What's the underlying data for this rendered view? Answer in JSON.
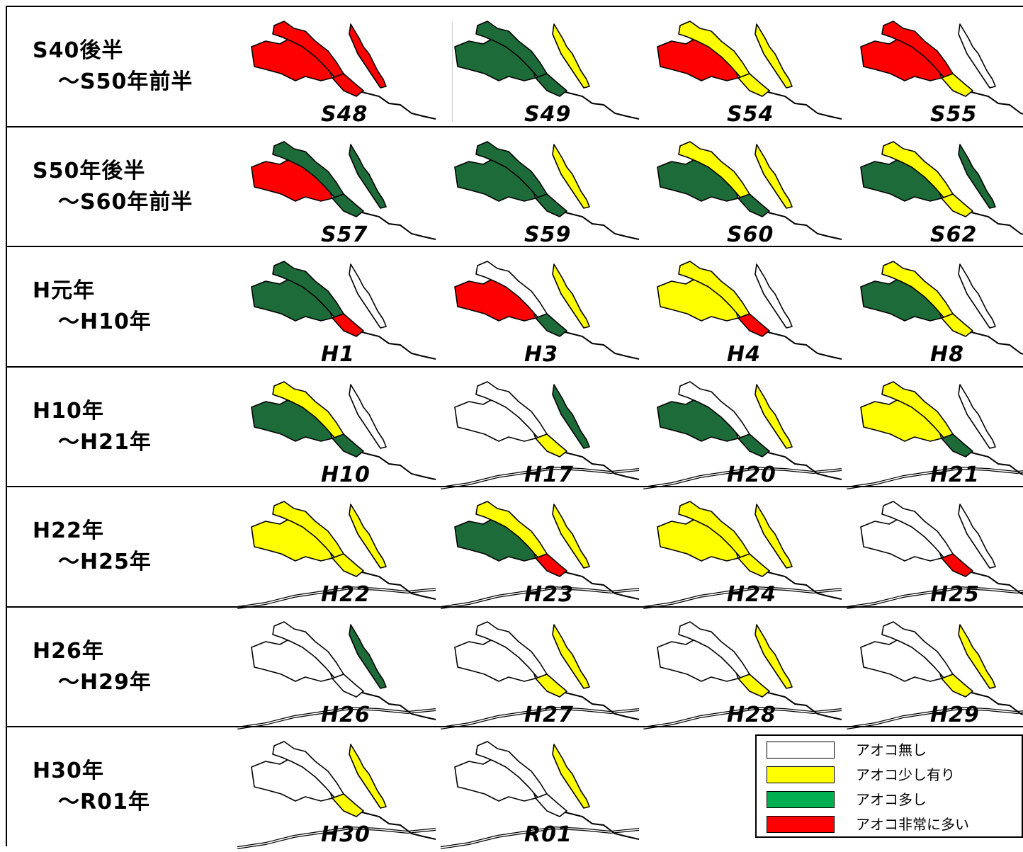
{
  "colors": {
    "none": "#ffffff",
    "few": "#ffff00",
    "many": "#1e6b3a",
    "many_legend": "#00b050",
    "very_many": "#ff0000"
  },
  "rows": [
    {
      "label_1": "S40後半",
      "label_2": "～S50年前半",
      "maps": [
        {
          "year": "S48",
          "style": "old",
          "fill": [
            "very_many",
            "very_many",
            "very_many",
            "very_many"
          ]
        },
        {
          "year": "S49",
          "style": "old",
          "fill": [
            "many",
            "many",
            "many",
            "few"
          ]
        },
        {
          "year": "S54",
          "style": "old",
          "fill": [
            "very_many",
            "few",
            "few",
            "few"
          ]
        },
        {
          "year": "S55",
          "style": "old",
          "fill": [
            "very_many",
            "very_many",
            "few",
            "none"
          ]
        }
      ]
    },
    {
      "label_1": "S50年後半",
      "label_2": "～S60年前半",
      "maps": [
        {
          "year": "S57",
          "style": "old",
          "fill": [
            "very_many",
            "many",
            "many",
            "many"
          ]
        },
        {
          "year": "S59",
          "style": "old",
          "fill": [
            "many",
            "many",
            "many",
            "few"
          ]
        },
        {
          "year": "S60",
          "style": "old",
          "fill": [
            "many",
            "few",
            "many",
            "few"
          ]
        },
        {
          "year": "S62",
          "style": "old",
          "fill": [
            "many",
            "few",
            "few",
            "many"
          ]
        }
      ]
    },
    {
      "label_1": "H元年",
      "label_2": "～H10年",
      "maps": [
        {
          "year": "H1",
          "style": "old",
          "fill": [
            "many",
            "many",
            "very_many",
            "none"
          ]
        },
        {
          "year": "H3",
          "style": "old",
          "fill": [
            "very_many",
            "none",
            "many",
            "few"
          ]
        },
        {
          "year": "H4",
          "style": "old",
          "fill": [
            "few",
            "few",
            "very_many",
            "none"
          ]
        },
        {
          "year": "H8",
          "style": "old",
          "fill": [
            "many",
            "few",
            "few",
            "none"
          ]
        }
      ]
    },
    {
      "label_1": "H10年",
      "label_2": "～H21年",
      "maps": [
        {
          "year": "H10",
          "style": "old",
          "fill": [
            "many",
            "few",
            "many",
            "none"
          ]
        },
        {
          "year": "H17",
          "style": "new",
          "fill": [
            "none",
            "none",
            "few",
            "many"
          ]
        },
        {
          "year": "H20",
          "style": "new",
          "fill": [
            "many",
            "none",
            "many",
            "few"
          ]
        },
        {
          "year": "H21",
          "style": "new",
          "fill": [
            "few",
            "few",
            "many",
            "none"
          ]
        }
      ]
    },
    {
      "label_1": "H22年",
      "label_2": "～H25年",
      "maps": [
        {
          "year": "H22",
          "style": "new",
          "fill": [
            "few",
            "few",
            "few",
            "few"
          ]
        },
        {
          "year": "H23",
          "style": "new",
          "fill": [
            "many",
            "few",
            "very_many",
            "few"
          ]
        },
        {
          "year": "H24",
          "style": "new",
          "fill": [
            "few",
            "few",
            "few",
            "few"
          ]
        },
        {
          "year": "H25",
          "style": "new",
          "fill": [
            "none",
            "none",
            "very_many",
            "none"
          ]
        }
      ]
    },
    {
      "label_1": "H26年",
      "label_2": "～H29年",
      "maps": [
        {
          "year": "H26",
          "style": "new",
          "fill": [
            "none",
            "none",
            "none",
            "many"
          ]
        },
        {
          "year": "H27",
          "style": "new",
          "fill": [
            "none",
            "none",
            "few",
            "few"
          ]
        },
        {
          "year": "H28",
          "style": "new",
          "fill": [
            "none",
            "none",
            "few",
            "few"
          ]
        },
        {
          "year": "H29",
          "style": "new",
          "fill": [
            "none",
            "none",
            "few",
            "few"
          ]
        }
      ]
    },
    {
      "label_1": "H30年",
      "label_2": "～R01年",
      "maps": [
        {
          "year": "H30",
          "style": "new",
          "fill": [
            "none",
            "none",
            "few",
            "few"
          ]
        },
        {
          "year": "R01",
          "style": "new",
          "fill": [
            "none",
            "none",
            "none",
            "few"
          ]
        }
      ]
    }
  ],
  "legend": {
    "items": [
      {
        "label": "アオコ無し",
        "color_key": "none"
      },
      {
        "label": "アオコ少し有り",
        "color_key": "few"
      },
      {
        "label": "アオコ多し",
        "color_key": "many_legend"
      },
      {
        "label": "アオコ非常に多い",
        "color_key": "very_many"
      }
    ]
  }
}
